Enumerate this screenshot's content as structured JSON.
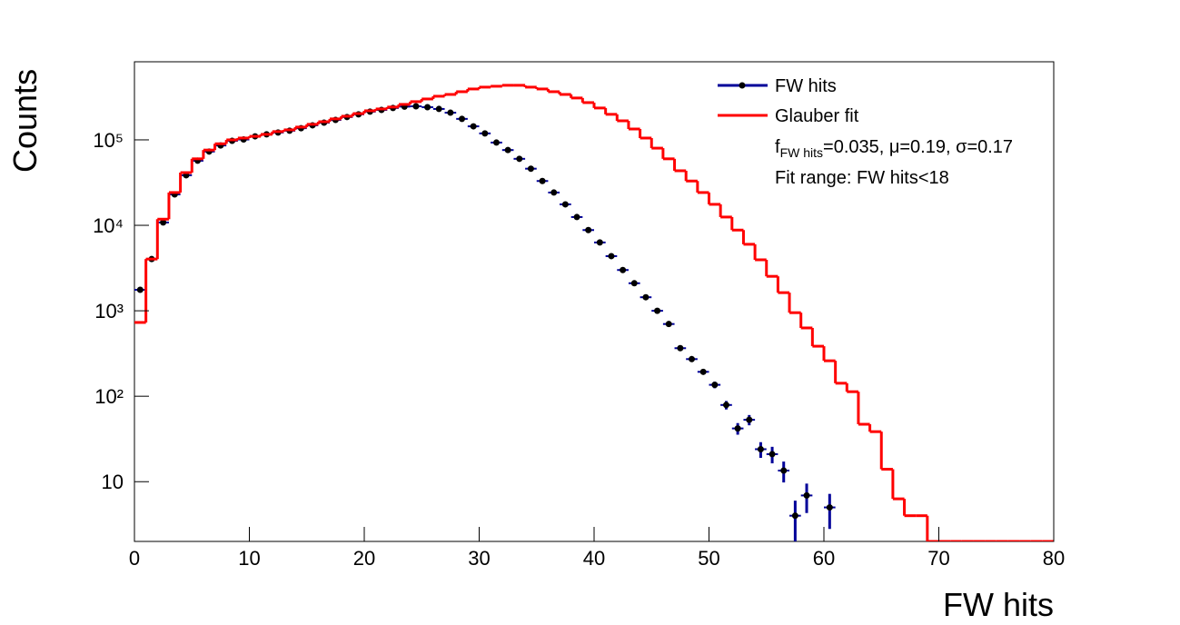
{
  "chart_data": {
    "type": "histogram",
    "xlabel": "FW hits",
    "ylabel": "Counts",
    "bins": [
      0,
      1,
      2,
      3,
      4,
      5,
      6,
      7,
      8,
      9,
      10,
      11,
      12,
      13,
      14,
      15,
      16,
      17,
      18,
      19,
      20,
      21,
      22,
      23,
      24,
      25,
      26,
      27,
      28,
      29,
      30,
      31,
      32,
      33,
      34,
      35,
      36,
      37,
      38,
      39,
      40,
      41,
      42,
      43,
      44,
      45,
      46,
      47,
      48,
      49,
      50,
      51,
      52,
      53,
      54,
      55,
      56,
      57,
      58,
      59,
      60,
      61,
      62,
      63,
      64,
      65,
      66,
      67,
      68,
      69,
      70,
      71,
      72,
      73,
      74,
      75,
      76,
      77,
      78,
      79,
      80
    ],
    "xlim": [
      0,
      80
    ],
    "xticks": [
      0,
      10,
      20,
      30,
      40,
      50,
      60,
      70,
      80
    ],
    "ylim": [
      2,
      820000
    ],
    "log_y": true,
    "yticks": [
      10,
      {
        "value": 100,
        "label": "10²"
      },
      {
        "value": 1000,
        "label": "10³"
      },
      {
        "value": 10000,
        "label": "10⁴"
      },
      {
        "value": 100000,
        "label": "10⁵"
      }
    ],
    "legend": "top-right",
    "series": [
      {
        "name": "FW hits",
        "style": "points",
        "color": "#000099",
        "marker_color": "#000000",
        "values": [
          1760,
          4030,
          10800,
          23000,
          38500,
          57000,
          73000,
          86000,
          97500,
          101000,
          110000,
          116000,
          122000,
          128000,
          137000,
          148000,
          159000,
          171000,
          185000,
          199000,
          214000,
          224000,
          236000,
          245000,
          247000,
          241000,
          230000,
          208000,
          176000,
          144000,
          119000,
          93000,
          76000,
          60000,
          46000,
          33000,
          24200,
          17600,
          12500,
          8800,
          6300,
          4360,
          3000,
          2100,
          1440,
          1000,
          700,
          365,
          272,
          193,
          136,
          79,
          42,
          53,
          24,
          21,
          13.5,
          4,
          6.9,
          null,
          5,
          null,
          null,
          null,
          null,
          null,
          null,
          null,
          null,
          null,
          null,
          null,
          null,
          null,
          null,
          null,
          null,
          null,
          null,
          null
        ],
        "errors": [
          null,
          null,
          null,
          null,
          null,
          null,
          null,
          null,
          null,
          null,
          null,
          null,
          null,
          null,
          null,
          null,
          null,
          null,
          null,
          null,
          null,
          null,
          null,
          null,
          null,
          null,
          null,
          null,
          null,
          null,
          null,
          null,
          null,
          null,
          null,
          null,
          null,
          null,
          null,
          null,
          null,
          null,
          null,
          null,
          null,
          null,
          null,
          null,
          null,
          null,
          12,
          9,
          6.5,
          7.3,
          5,
          4.6,
          3.7,
          2,
          2.6,
          null,
          2.2,
          null,
          null,
          null,
          null,
          null,
          null,
          null,
          null,
          null,
          null,
          null,
          null,
          null,
          null,
          null,
          null,
          null,
          null,
          null
        ]
      },
      {
        "name": "Glauber fit",
        "style": "step",
        "color": "#ff0000",
        "values": [
          730,
          4030,
          11800,
          24200,
          41400,
          60000,
          76000,
          90000,
          100000,
          105000,
          110000,
          116000,
          125000,
          131000,
          141000,
          152000,
          163000,
          176000,
          189000,
          203000,
          219000,
          230000,
          242000,
          260000,
          280000,
          301000,
          324000,
          340000,
          366000,
          394000,
          414000,
          424000,
          435000,
          435000,
          414000,
          394000,
          366000,
          340000,
          309000,
          273000,
          236000,
          199000,
          167000,
          134000,
          105000,
          80000,
          60000,
          43500,
          33000,
          24200,
          17600,
          12500,
          8800,
          6000,
          3950,
          2530,
          1630,
          950,
          630,
          385,
          260,
          142,
          113,
          47,
          38.5,
          14,
          6.3,
          4,
          4,
          0,
          0,
          0,
          0,
          0,
          0,
          0,
          0,
          0,
          0,
          0
        ]
      }
    ],
    "fit_label": {
      "main": "f",
      "subscript": "FW hits",
      "text": "=0.035, μ=0.19, σ=0.17"
    },
    "fit_range": "Fit range: FW hits<18"
  }
}
